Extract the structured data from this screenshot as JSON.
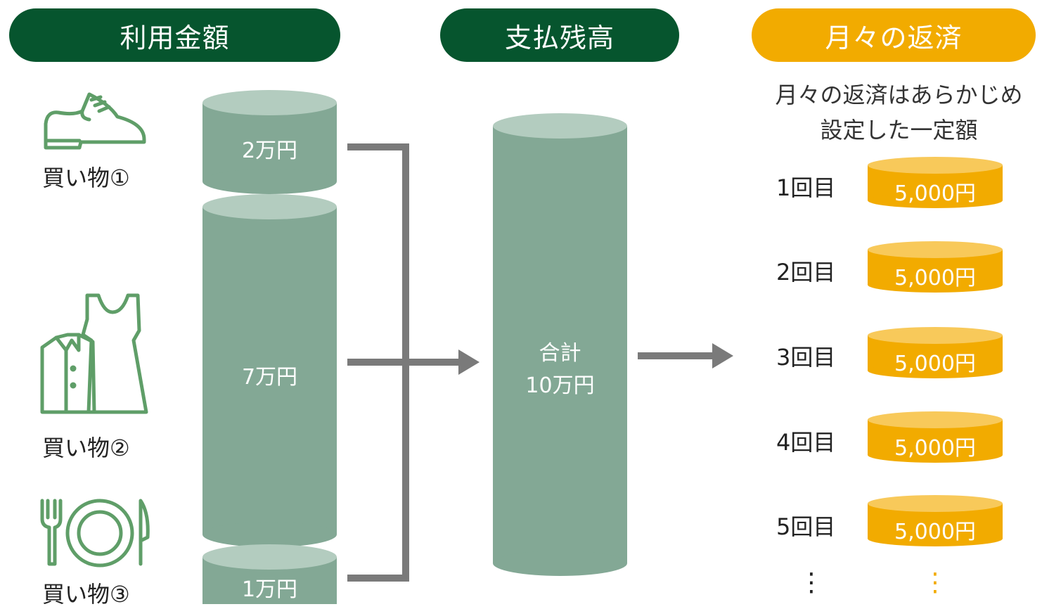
{
  "headers": {
    "usage": "利用金額",
    "balance": "支払残高",
    "monthly": "月々の返済"
  },
  "purchases": [
    {
      "label": "買い物①",
      "icon": "shoe-icon",
      "amount": "2万円"
    },
    {
      "label": "買い物②",
      "icon": "clothes-icon",
      "amount": "7万円"
    },
    {
      "label": "買い物③",
      "icon": "tableware-icon",
      "amount": "1万円"
    }
  ],
  "total": {
    "line1": "合計",
    "line2": "10万円"
  },
  "monthly_description": {
    "line1": "月々の返済はあらかじめ",
    "line2": "設定した一定額"
  },
  "payments": [
    {
      "label": "1回目",
      "amount": "5,000円"
    },
    {
      "label": "2回目",
      "amount": "5,000円"
    },
    {
      "label": "3回目",
      "amount": "5,000円"
    },
    {
      "label": "4回目",
      "amount": "5,000円"
    },
    {
      "label": "5回目",
      "amount": "5,000円"
    }
  ],
  "continuation": "⋮",
  "colors": {
    "dark_green": "#06552e",
    "cylinder_green": "#83a895",
    "cylinder_top_green": "#b3ccbf",
    "icon_green": "#5f9e68",
    "arrow_gray": "#7a7a7a",
    "gold": "#f2ab00",
    "gold_top": "#f8c95a"
  }
}
